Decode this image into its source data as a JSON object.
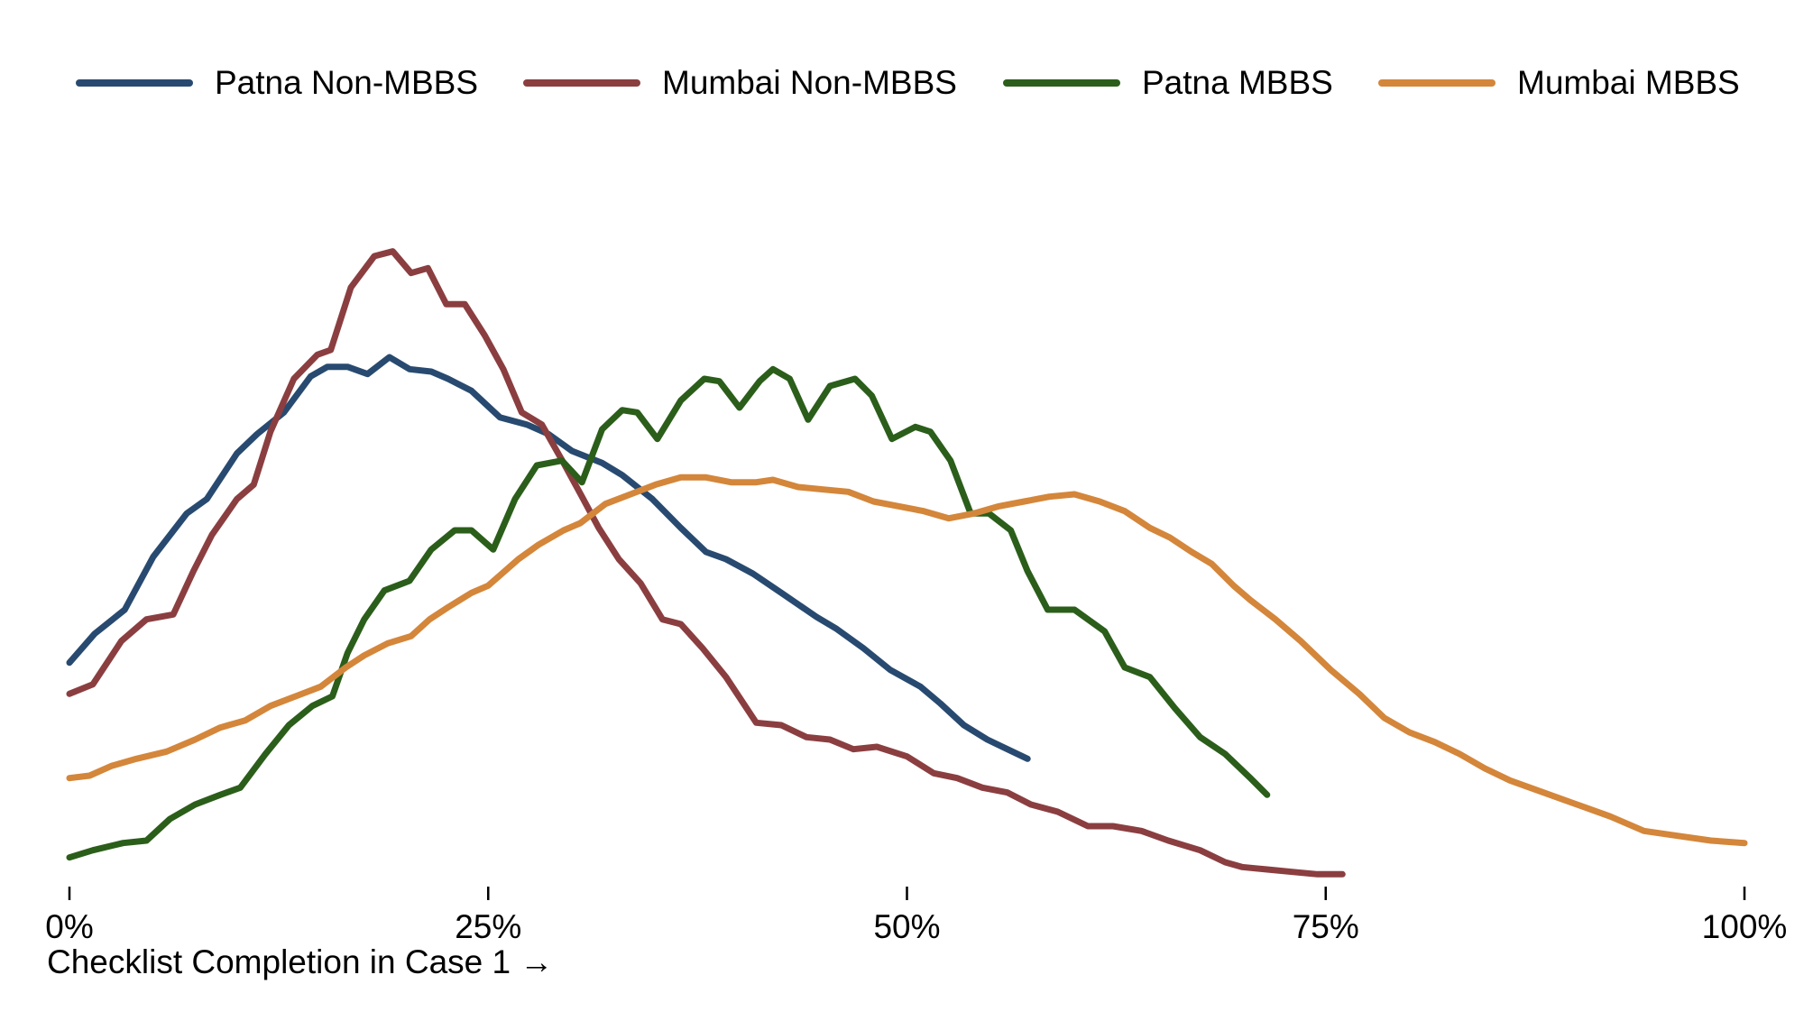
{
  "chart_data": {
    "type": "line",
    "xlabel": "Checklist Completion in Case 1 →",
    "ylabel": "",
    "xlim": [
      0,
      100
    ],
    "ylim": [
      0,
      0.0315
    ],
    "x_ticks": [
      0,
      25,
      50,
      75,
      100
    ],
    "x_tick_labels": [
      "0%",
      "25%",
      "50%",
      "75%",
      "100%"
    ],
    "grid": false,
    "legend_position": "top",
    "series": [
      {
        "name": "Patna Non-MBBS",
        "color": "#284A70",
        "x": [
          0,
          1.5,
          3.3,
          5,
          7,
          8.2,
          10,
          11.2,
          12.8,
          14.4,
          15.4,
          16.6,
          17.8,
          19.1,
          20.3,
          21.6,
          22.6,
          24,
          25.7,
          27.3,
          28.6,
          30,
          31.8,
          33,
          34.8,
          36.5,
          38,
          39.2,
          40.8,
          42.5,
          44.6,
          45.8,
          47.4,
          49,
          50.8,
          52,
          53.4,
          54.8,
          56,
          57.2
        ],
        "y": [
          0.0092,
          0.0104,
          0.0114,
          0.0136,
          0.0154,
          0.016,
          0.0179,
          0.0187,
          0.0196,
          0.0211,
          0.0215,
          0.0215,
          0.0212,
          0.0219,
          0.0214,
          0.0213,
          0.021,
          0.0205,
          0.0194,
          0.0191,
          0.0187,
          0.018,
          0.0175,
          0.017,
          0.016,
          0.0148,
          0.0138,
          0.0135,
          0.0129,
          0.0121,
          0.0111,
          0.0106,
          0.0098,
          0.0089,
          0.0082,
          0.0075,
          0.0066,
          0.006,
          0.0056,
          0.0052
        ]
      },
      {
        "name": "Mumbai Non-MBBS",
        "color": "#8B3E40",
        "x": [
          0,
          1.4,
          3.1,
          4.6,
          6.2,
          7.4,
          8.5,
          10,
          11,
          12,
          13.4,
          14.8,
          15.6,
          16.8,
          18.2,
          19.3,
          20.4,
          21.4,
          22.5,
          23.6,
          24.8,
          25.9,
          27,
          28.2,
          29.5,
          30.6,
          31.6,
          32.8,
          34.1,
          35.4,
          36.5,
          37.8,
          39.2,
          41,
          42.5,
          44,
          45.4,
          46.8,
          48.2,
          50,
          51.6,
          53,
          54.5,
          56,
          57.4,
          59,
          60.8,
          62.3,
          64,
          65.6,
          67.5,
          69,
          70,
          71.5,
          73,
          74.5,
          76
        ],
        "y": [
          0.0079,
          0.0083,
          0.0101,
          0.011,
          0.0112,
          0.013,
          0.0145,
          0.016,
          0.0166,
          0.0188,
          0.021,
          0.022,
          0.0222,
          0.0248,
          0.0261,
          0.0263,
          0.0254,
          0.0256,
          0.0241,
          0.0241,
          0.0228,
          0.0214,
          0.0196,
          0.0191,
          0.0175,
          0.0161,
          0.0148,
          0.0135,
          0.0125,
          0.011,
          0.0108,
          0.0098,
          0.0086,
          0.0067,
          0.0066,
          0.0061,
          0.006,
          0.0056,
          0.0057,
          0.0053,
          0.0046,
          0.0044,
          0.004,
          0.0038,
          0.0033,
          0.003,
          0.0024,
          0.0024,
          0.0022,
          0.0018,
          0.0014,
          0.0009,
          0.0007,
          0.0006,
          0.0005,
          0.0004,
          0.0004
        ]
      },
      {
        "name": "Patna MBBS",
        "color": "#2B5E1A",
        "x": [
          0,
          1.4,
          3.2,
          4.6,
          6,
          7.5,
          9,
          10.2,
          11.7,
          13.1,
          14.5,
          15.7,
          16.6,
          17.6,
          18.8,
          20.3,
          21.6,
          23,
          24,
          25.3,
          26.6,
          27.9,
          29.4,
          30.6,
          31.8,
          33,
          33.9,
          35.1,
          36.5,
          37.9,
          38.8,
          40,
          41.2,
          42,
          43,
          44.1,
          45.4,
          46.9,
          47.9,
          49.1,
          50.5,
          51.4,
          52.6,
          53.8,
          54.9,
          56.2,
          57.2,
          58.4,
          60,
          61.8,
          63,
          64.5,
          66,
          67.5,
          69,
          70.5,
          71.5
        ],
        "y": [
          0.0011,
          0.0014,
          0.0017,
          0.0018,
          0.0027,
          0.0033,
          0.0037,
          0.004,
          0.0054,
          0.0066,
          0.0074,
          0.0078,
          0.0096,
          0.011,
          0.0122,
          0.0126,
          0.0139,
          0.0147,
          0.0147,
          0.0139,
          0.016,
          0.0174,
          0.0176,
          0.0167,
          0.0189,
          0.0197,
          0.0196,
          0.0185,
          0.0201,
          0.021,
          0.0209,
          0.0198,
          0.0209,
          0.0214,
          0.021,
          0.0193,
          0.0207,
          0.021,
          0.0203,
          0.0185,
          0.019,
          0.0188,
          0.0176,
          0.0154,
          0.0154,
          0.0147,
          0.013,
          0.0114,
          0.0114,
          0.0105,
          0.009,
          0.0086,
          0.0073,
          0.0061,
          0.0054,
          0.0044,
          0.0037
        ]
      },
      {
        "name": "Mumbai MBBS",
        "color": "#D4863A",
        "x": [
          0,
          1.2,
          2.5,
          4,
          5.8,
          7.5,
          9,
          10.5,
          12,
          13.5,
          15,
          16.5,
          17.6,
          19,
          20.4,
          21.5,
          22.6,
          24,
          25,
          26.8,
          28,
          29.5,
          30.5,
          32,
          33.5,
          35,
          36.5,
          38,
          39.5,
          41,
          42,
          43.5,
          45,
          46.5,
          48,
          49.5,
          51,
          52.5,
          54,
          55.5,
          57,
          58.5,
          60,
          61.5,
          63,
          64.5,
          65.7,
          67,
          68.2,
          69.5,
          70.5,
          72,
          73.5,
          75.3,
          77,
          78.5,
          80,
          81.5,
          83,
          84.5,
          86,
          88,
          90,
          92,
          94,
          96,
          98,
          100
        ],
        "y": [
          0.0044,
          0.0045,
          0.0049,
          0.0052,
          0.0055,
          0.006,
          0.0065,
          0.0068,
          0.0074,
          0.0078,
          0.0082,
          0.009,
          0.0095,
          0.01,
          0.0103,
          0.011,
          0.0115,
          0.0121,
          0.0124,
          0.0135,
          0.0141,
          0.0147,
          0.015,
          0.0158,
          0.0162,
          0.0166,
          0.0169,
          0.0169,
          0.0167,
          0.0167,
          0.0168,
          0.0165,
          0.0164,
          0.0163,
          0.0159,
          0.0157,
          0.0155,
          0.0152,
          0.0154,
          0.0157,
          0.0159,
          0.0161,
          0.0162,
          0.0159,
          0.0155,
          0.0148,
          0.0144,
          0.0138,
          0.0133,
          0.0124,
          0.0118,
          0.011,
          0.0101,
          0.0089,
          0.0079,
          0.0069,
          0.0063,
          0.0059,
          0.0054,
          0.0048,
          0.0043,
          0.0038,
          0.0033,
          0.0028,
          0.0022,
          0.002,
          0.0018,
          0.0017
        ]
      }
    ]
  }
}
